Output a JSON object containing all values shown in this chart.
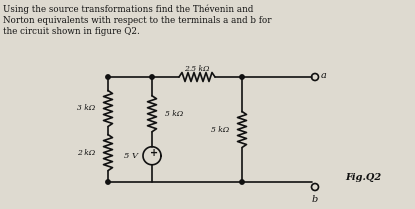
{
  "title_line1": "Using the source transformations find the Thévenin and",
  "title_line2": "Norton equivalents with respect to the terminals a and b for",
  "title_line3": "the circuit shown in figure Q2.",
  "fig_label": "Fig.Q2",
  "bg_color": "#dedad0",
  "text_color": "#111111",
  "R1_label": "2.5 kΩ",
  "R2_label": "3 kΩ",
  "R3_label": "5 kΩ",
  "R4_label": "5 kΩ",
  "R5_label": "2 kΩ",
  "V_label": "5 V",
  "node_a": "a",
  "node_b": "b"
}
